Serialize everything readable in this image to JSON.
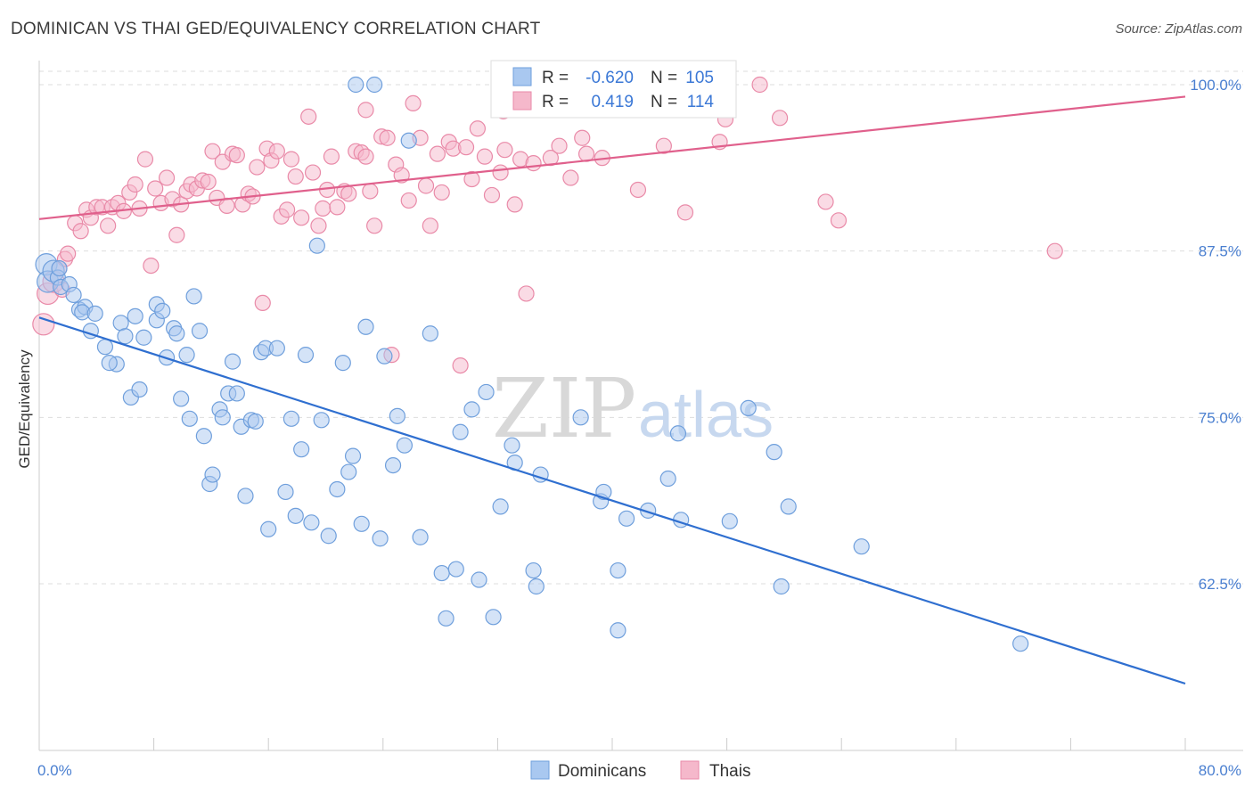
{
  "title": "DOMINICAN VS THAI GED/EQUIVALENCY CORRELATION CHART",
  "source": "Source: ZipAtlas.com",
  "watermark": {
    "part1": "ZIP",
    "part2": "atlas"
  },
  "colors": {
    "dominicans_fill": "#a9c8f0",
    "dominicans_stroke": "#6f9fdc",
    "dominicans_line": "#2f6fd0",
    "thais_fill": "#f5b8cb",
    "thais_stroke": "#e98aa8",
    "thais_line": "#e0608c",
    "grid": "#dddddd",
    "tick_label": "#4a7fd0"
  },
  "legend": {
    "rows": [
      {
        "r_label": "R =",
        "r_value": "-0.620",
        "n_label": "N =",
        "n_value": "105"
      },
      {
        "r_label": "R =",
        "r_value": "0.419",
        "n_label": "N =",
        "n_value": "114"
      }
    ]
  },
  "bottom_legend": [
    "Dominicans",
    "Thais"
  ],
  "chart_data": {
    "type": "scatter",
    "title": "DOMINICAN VS THAI GED/EQUIVALENCY CORRELATION CHART",
    "xlabel": "",
    "ylabel": "GED/Equivalency",
    "xlim": [
      0,
      80
    ],
    "ylim": [
      50,
      100
    ],
    "x_tick_labels": [
      "0.0%",
      "80.0%"
    ],
    "y_ticks": [
      62.5,
      75.0,
      87.5,
      100.0
    ],
    "y_tick_labels": [
      "62.5%",
      "75.0%",
      "87.5%",
      "100.0%"
    ],
    "grid": true,
    "legend_position": "top-center",
    "series": [
      {
        "name": "Dominicans",
        "r": -0.62,
        "n": 105,
        "trend": {
          "x": [
            0,
            80
          ],
          "y": [
            82.5,
            55.0
          ]
        },
        "points": [
          [
            0.5,
            86.5
          ],
          [
            0.6,
            85.2
          ],
          [
            1.0,
            86.0
          ],
          [
            1.3,
            85.5
          ],
          [
            1.5,
            84.8
          ],
          [
            1.4,
            86.2
          ],
          [
            2.1,
            85.0
          ],
          [
            2.4,
            84.2
          ],
          [
            2.8,
            83.1
          ],
          [
            3.2,
            83.3
          ],
          [
            3.0,
            82.9
          ],
          [
            3.9,
            82.8
          ],
          [
            3.6,
            81.5
          ],
          [
            4.6,
            80.3
          ],
          [
            5.4,
            79.0
          ],
          [
            4.9,
            79.1
          ],
          [
            5.7,
            82.1
          ],
          [
            6.0,
            81.1
          ],
          [
            6.7,
            82.6
          ],
          [
            7.3,
            81.0
          ],
          [
            6.4,
            76.5
          ],
          [
            7.0,
            77.1
          ],
          [
            8.2,
            82.3
          ],
          [
            8.2,
            83.5
          ],
          [
            8.6,
            83.0
          ],
          [
            8.9,
            79.5
          ],
          [
            9.4,
            81.7
          ],
          [
            9.6,
            81.3
          ],
          [
            9.9,
            76.4
          ],
          [
            10.3,
            79.7
          ],
          [
            10.5,
            74.9
          ],
          [
            10.8,
            84.1
          ],
          [
            11.2,
            81.5
          ],
          [
            11.5,
            73.6
          ],
          [
            11.9,
            70.0
          ],
          [
            12.1,
            70.7
          ],
          [
            12.6,
            75.6
          ],
          [
            12.8,
            75.0
          ],
          [
            13.2,
            76.8
          ],
          [
            13.5,
            79.2
          ],
          [
            13.8,
            76.8
          ],
          [
            14.1,
            74.3
          ],
          [
            14.4,
            69.1
          ],
          [
            14.8,
            74.8
          ],
          [
            15.1,
            74.7
          ],
          [
            15.5,
            79.9
          ],
          [
            15.8,
            80.2
          ],
          [
            16.0,
            66.6
          ],
          [
            16.6,
            80.2
          ],
          [
            17.2,
            69.4
          ],
          [
            17.6,
            74.9
          ],
          [
            17.9,
            67.6
          ],
          [
            18.3,
            72.6
          ],
          [
            18.6,
            79.7
          ],
          [
            19.0,
            67.1
          ],
          [
            19.4,
            87.9
          ],
          [
            19.7,
            74.8
          ],
          [
            20.2,
            66.1
          ],
          [
            20.8,
            69.6
          ],
          [
            21.2,
            79.1
          ],
          [
            21.6,
            70.9
          ],
          [
            21.9,
            72.1
          ],
          [
            22.1,
            100.0
          ],
          [
            22.5,
            67.0
          ],
          [
            22.8,
            81.8
          ],
          [
            23.4,
            100.0
          ],
          [
            23.8,
            65.9
          ],
          [
            24.1,
            79.6
          ],
          [
            24.7,
            71.4
          ],
          [
            25.0,
            75.1
          ],
          [
            25.5,
            72.9
          ],
          [
            25.8,
            95.8
          ],
          [
            26.6,
            66.0
          ],
          [
            27.3,
            81.3
          ],
          [
            28.1,
            63.3
          ],
          [
            28.4,
            59.9
          ],
          [
            29.1,
            63.6
          ],
          [
            29.4,
            73.9
          ],
          [
            30.2,
            75.6
          ],
          [
            30.7,
            62.8
          ],
          [
            31.2,
            76.9
          ],
          [
            31.7,
            60.0
          ],
          [
            32.2,
            68.3
          ],
          [
            33.0,
            72.9
          ],
          [
            33.2,
            71.6
          ],
          [
            34.5,
            63.5
          ],
          [
            34.7,
            62.3
          ],
          [
            35.0,
            70.7
          ],
          [
            37.8,
            75.0
          ],
          [
            39.2,
            68.7
          ],
          [
            39.4,
            69.4
          ],
          [
            40.4,
            63.5
          ],
          [
            40.4,
            59.0
          ],
          [
            41.0,
            67.4
          ],
          [
            42.5,
            68.0
          ],
          [
            43.9,
            70.4
          ],
          [
            44.6,
            73.8
          ],
          [
            44.8,
            67.3
          ],
          [
            48.2,
            67.2
          ],
          [
            49.5,
            75.7
          ],
          [
            51.3,
            72.4
          ],
          [
            51.8,
            62.3
          ],
          [
            52.3,
            68.3
          ],
          [
            57.4,
            65.3
          ],
          [
            68.5,
            58.0
          ]
        ]
      },
      {
        "name": "Thais",
        "r": 0.419,
        "n": 114,
        "trend": {
          "x": [
            0,
            80
          ],
          "y": [
            89.9,
            99.1
          ]
        },
        "points": [
          [
            0.3,
            82.0
          ],
          [
            0.6,
            84.3
          ],
          [
            1.0,
            85.2
          ],
          [
            1.4,
            86.2
          ],
          [
            1.8,
            86.9
          ],
          [
            1.6,
            84.6
          ],
          [
            2.0,
            87.3
          ],
          [
            2.5,
            89.6
          ],
          [
            2.9,
            89.0
          ],
          [
            3.3,
            90.6
          ],
          [
            3.6,
            90.0
          ],
          [
            4.0,
            90.8
          ],
          [
            4.4,
            90.8
          ],
          [
            4.8,
            89.4
          ],
          [
            5.1,
            90.8
          ],
          [
            5.5,
            91.1
          ],
          [
            5.9,
            90.5
          ],
          [
            6.3,
            91.9
          ],
          [
            6.7,
            92.5
          ],
          [
            7.0,
            90.7
          ],
          [
            7.4,
            94.4
          ],
          [
            7.8,
            86.4
          ],
          [
            8.1,
            92.2
          ],
          [
            8.5,
            91.1
          ],
          [
            8.9,
            93.0
          ],
          [
            9.3,
            91.4
          ],
          [
            9.6,
            88.7
          ],
          [
            9.9,
            91.0
          ],
          [
            10.3,
            92.0
          ],
          [
            10.6,
            92.5
          ],
          [
            11.0,
            92.2
          ],
          [
            11.4,
            92.8
          ],
          [
            11.8,
            92.7
          ],
          [
            12.1,
            95.0
          ],
          [
            12.4,
            91.5
          ],
          [
            12.8,
            94.2
          ],
          [
            13.1,
            90.9
          ],
          [
            13.5,
            94.8
          ],
          [
            13.8,
            94.7
          ],
          [
            14.2,
            91.0
          ],
          [
            14.6,
            91.8
          ],
          [
            14.9,
            91.6
          ],
          [
            15.2,
            93.8
          ],
          [
            15.6,
            83.6
          ],
          [
            15.9,
            95.2
          ],
          [
            16.2,
            94.3
          ],
          [
            16.6,
            95.0
          ],
          [
            16.9,
            90.1
          ],
          [
            17.3,
            90.6
          ],
          [
            17.6,
            94.4
          ],
          [
            17.9,
            93.1
          ],
          [
            18.3,
            90.0
          ],
          [
            18.8,
            97.6
          ],
          [
            19.1,
            93.4
          ],
          [
            19.5,
            89.4
          ],
          [
            19.8,
            90.7
          ],
          [
            20.1,
            92.1
          ],
          [
            20.4,
            94.6
          ],
          [
            20.8,
            90.8
          ],
          [
            21.3,
            92.0
          ],
          [
            21.6,
            91.8
          ],
          [
            22.1,
            95.0
          ],
          [
            22.5,
            94.9
          ],
          [
            22.8,
            94.6
          ],
          [
            23.1,
            92.0
          ],
          [
            23.4,
            89.4
          ],
          [
            23.9,
            96.1
          ],
          [
            24.3,
            96.0
          ],
          [
            24.6,
            79.7
          ],
          [
            24.9,
            94.0
          ],
          [
            25.3,
            93.2
          ],
          [
            25.8,
            91.3
          ],
          [
            26.1,
            98.6
          ],
          [
            26.6,
            96.0
          ],
          [
            27.0,
            92.4
          ],
          [
            27.3,
            89.4
          ],
          [
            27.8,
            94.8
          ],
          [
            28.1,
            91.9
          ],
          [
            28.6,
            95.7
          ],
          [
            28.9,
            95.2
          ],
          [
            29.4,
            78.9
          ],
          [
            29.8,
            95.3
          ],
          [
            30.2,
            92.9
          ],
          [
            30.6,
            96.7
          ],
          [
            31.1,
            94.6
          ],
          [
            31.6,
            91.7
          ],
          [
            32.2,
            93.4
          ],
          [
            32.5,
            95.1
          ],
          [
            32.9,
            98.2
          ],
          [
            33.2,
            91.0
          ],
          [
            33.6,
            94.4
          ],
          [
            34.0,
            84.3
          ],
          [
            34.5,
            94.1
          ],
          [
            35.2,
            98.5
          ],
          [
            35.7,
            94.5
          ],
          [
            36.3,
            95.4
          ],
          [
            37.1,
            93.0
          ],
          [
            37.9,
            96.0
          ],
          [
            38.2,
            94.8
          ],
          [
            39.3,
            94.5
          ],
          [
            41.8,
            92.1
          ],
          [
            43.6,
            95.4
          ],
          [
            45.1,
            90.4
          ],
          [
            47.5,
            95.7
          ],
          [
            47.6,
            98.1
          ],
          [
            47.9,
            97.4
          ],
          [
            50.3,
            100.0
          ],
          [
            51.7,
            97.5
          ],
          [
            54.9,
            91.2
          ],
          [
            55.8,
            89.8
          ],
          [
            70.9,
            87.5
          ],
          [
            22.8,
            98.1
          ],
          [
            36.8,
            98.6
          ],
          [
            32.4,
            98.0
          ]
        ]
      }
    ]
  }
}
